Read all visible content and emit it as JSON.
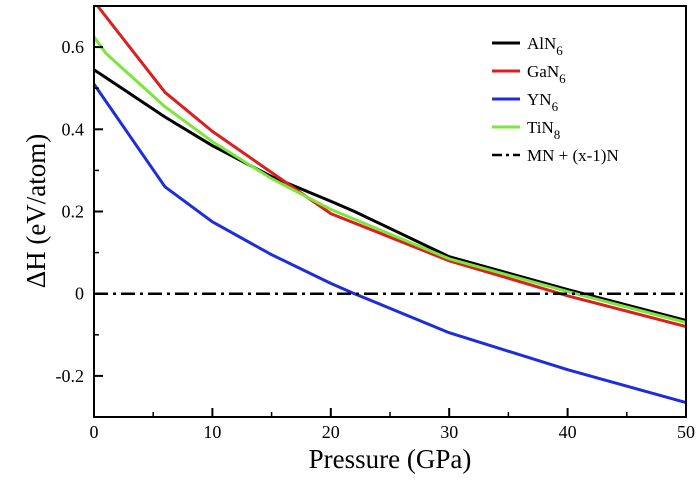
{
  "chart_data": {
    "type": "line",
    "title": "",
    "xlabel": "Pressure (GPa)",
    "ylabel": "ΔH (eV/atom)",
    "xlim": [
      0,
      50
    ],
    "ylim": [
      -0.3,
      0.7
    ],
    "grid": false,
    "legend_position": "top-right",
    "x_ticks": [
      {
        "value": 0,
        "label": "0"
      },
      {
        "value": 10,
        "label": "10"
      },
      {
        "value": 20,
        "label": "20"
      },
      {
        "value": 30,
        "label": "30"
      },
      {
        "value": 40,
        "label": "40"
      },
      {
        "value": 50,
        "label": "50"
      }
    ],
    "y_ticks": [
      {
        "value": -0.2,
        "label": "-0.2"
      },
      {
        "value": 0,
        "label": "0"
      },
      {
        "value": 0.2,
        "label": "0.2"
      },
      {
        "value": 0.4,
        "label": "0.4"
      },
      {
        "value": 0.6,
        "label": "0.6"
      }
    ],
    "series": [
      {
        "name": "AlN6",
        "label_main": "AlN",
        "label_sub": "6",
        "color": "#000000",
        "dash": "solid",
        "x": [
          0,
          6,
          10,
          15,
          20,
          22,
          30,
          40,
          50
        ],
        "y": [
          0.545,
          0.43,
          0.36,
          0.285,
          0.225,
          0.2,
          0.09,
          0.01,
          -0.065
        ]
      },
      {
        "name": "GaN6",
        "label_main": "GaN",
        "label_sub": "6",
        "color": "#dc1e1e",
        "dash": "solid",
        "x": [
          0.3,
          6,
          10,
          15,
          20,
          30,
          40,
          50
        ],
        "y": [
          0.7,
          0.49,
          0.395,
          0.295,
          0.195,
          0.08,
          -0.005,
          -0.08
        ]
      },
      {
        "name": "YN6",
        "label_main": "YN",
        "label_sub": "6",
        "color": "#1e2ddc",
        "dash": "solid",
        "x": [
          0,
          6,
          10,
          15,
          20,
          22,
          30,
          40,
          50
        ],
        "y": [
          0.51,
          0.26,
          0.175,
          0.095,
          0.025,
          0.0,
          -0.095,
          -0.185,
          -0.265
        ]
      },
      {
        "name": "TiN8",
        "label_main": "TiN",
        "label_sub": "8",
        "color": "#7de63c",
        "dash": "solid",
        "x": [
          0,
          1,
          6,
          10,
          15,
          20,
          30,
          40,
          50
        ],
        "y": [
          0.625,
          0.585,
          0.455,
          0.37,
          0.28,
          0.205,
          0.085,
          0.005,
          -0.07
        ]
      },
      {
        "name": "MN + (x-1)N",
        "label_main": "MN + (x-1)N",
        "label_sub": "",
        "color": "#000000",
        "dash": "dashdot",
        "x": [
          0,
          50
        ],
        "y": [
          0,
          0
        ]
      }
    ]
  }
}
